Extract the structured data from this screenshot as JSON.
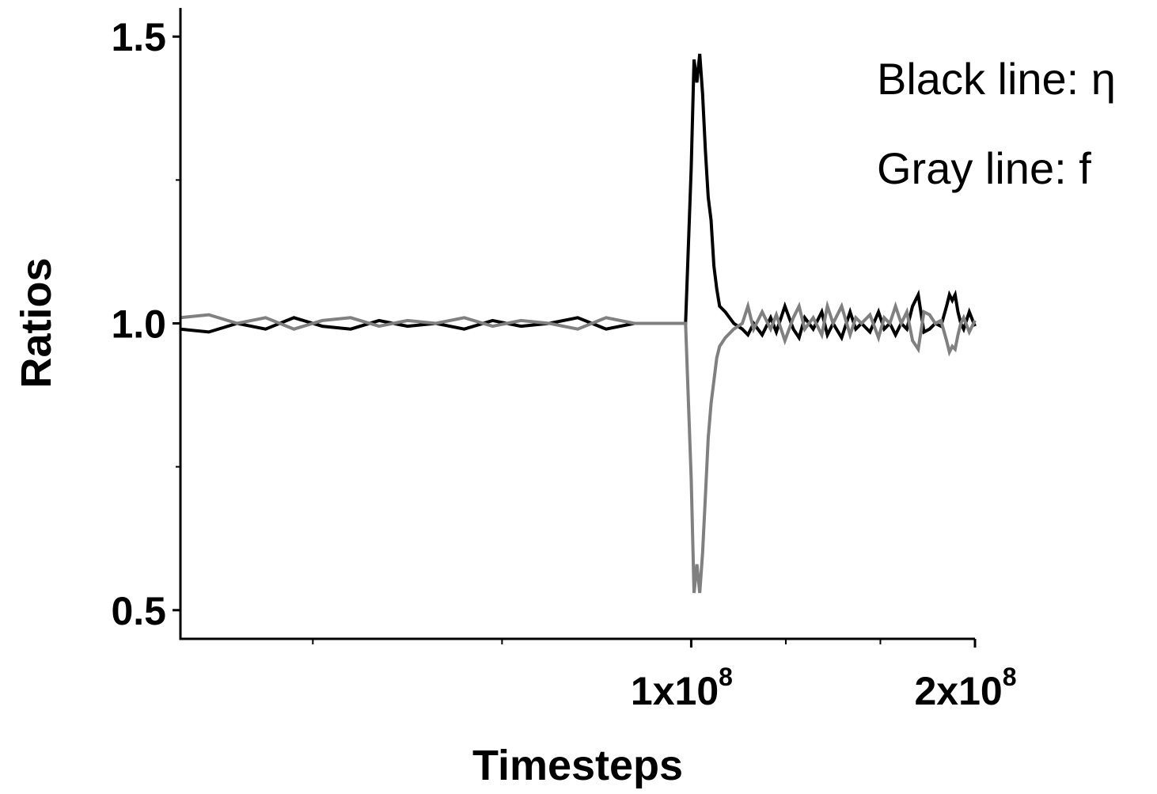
{
  "chart_data": {
    "type": "line",
    "title": "",
    "xlabel": "Timesteps",
    "ylabel": "Ratios",
    "xlim": [
      -80000000,
      200000000
    ],
    "ylim": [
      0.45,
      1.55
    ],
    "grid": false,
    "x_ticks": [
      {
        "value": 100000000,
        "mantissa": "1x10",
        "exponent": "8"
      },
      {
        "value": 200000000,
        "mantissa": "2x10",
        "exponent": "8"
      }
    ],
    "x_minor_ticks": [
      -33333333,
      33333333,
      133333333,
      166666667
    ],
    "y_ticks": [
      {
        "value": 0.5,
        "label": "0.5"
      },
      {
        "value": 1.0,
        "label": "1.0"
      },
      {
        "value": 1.5,
        "label": "1.5"
      }
    ],
    "y_minor_ticks": [
      0.75,
      1.25
    ],
    "annotations": [
      {
        "text": "Black line: η",
        "position": "top-right"
      },
      {
        "text": "Gray line: f",
        "position": "top-right"
      }
    ],
    "series": [
      {
        "color": "#000000",
        "x": [
          -80000000,
          -70000000,
          -60000000,
          -50000000,
          -40000000,
          -30000000,
          -20000000,
          -10000000,
          0,
          10000000,
          20000000,
          30000000,
          40000000,
          50000000,
          60000000,
          70000000,
          80000000,
          90000000,
          98000000,
          100000000,
          101000000,
          102000000,
          103000000,
          104000000,
          105000000,
          106000000,
          107000000,
          108000000,
          109000000,
          110000000,
          112000000,
          115000000,
          118000000,
          120000000,
          122000000,
          125000000,
          128000000,
          130000000,
          133000000,
          136000000,
          138000000,
          140000000,
          143000000,
          146000000,
          148000000,
          150000000,
          153000000,
          156000000,
          158000000,
          160000000,
          163000000,
          166000000,
          168000000,
          170000000,
          172000000,
          174000000,
          176000000,
          178000000,
          180000000,
          182000000,
          184000000,
          186000000,
          188000000,
          190000000,
          191000000,
          192000000,
          193000000,
          194000000,
          195000000,
          196000000,
          198000000,
          200000000
        ],
        "values": [
          0.99,
          0.985,
          1.0,
          0.99,
          1.01,
          0.995,
          0.99,
          1.005,
          0.995,
          1.0,
          0.99,
          1.005,
          0.995,
          1.0,
          1.01,
          0.99,
          1.0,
          1.0,
          1.0,
          1.27,
          1.46,
          1.42,
          1.47,
          1.4,
          1.3,
          1.22,
          1.18,
          1.1,
          1.06,
          1.03,
          1.02,
          1.0,
          0.99,
          0.98,
          1.0,
          0.98,
          1.01,
          0.985,
          1.03,
          0.99,
          0.975,
          1.01,
          0.99,
          1.02,
          0.98,
          1.0,
          0.975,
          1.02,
          0.99,
          1.0,
          0.985,
          1.02,
          0.99,
          1.0,
          0.98,
          1.0,
          0.99,
          1.03,
          1.05,
          0.985,
          0.99,
          1.0,
          0.995,
          1.03,
          1.05,
          1.04,
          1.05,
          1.02,
          1.0,
          0.99,
          1.02,
          0.995
        ]
      },
      {
        "color": "#808080",
        "x": [
          -80000000,
          -70000000,
          -60000000,
          -50000000,
          -40000000,
          -30000000,
          -20000000,
          -10000000,
          0,
          10000000,
          20000000,
          30000000,
          40000000,
          50000000,
          60000000,
          70000000,
          80000000,
          90000000,
          98000000,
          100000000,
          101000000,
          102000000,
          103000000,
          104000000,
          105000000,
          106000000,
          107000000,
          108000000,
          109000000,
          110000000,
          112000000,
          115000000,
          118000000,
          120000000,
          122000000,
          125000000,
          128000000,
          130000000,
          133000000,
          136000000,
          138000000,
          140000000,
          143000000,
          146000000,
          148000000,
          150000000,
          153000000,
          156000000,
          158000000,
          160000000,
          163000000,
          166000000,
          168000000,
          170000000,
          172000000,
          174000000,
          176000000,
          178000000,
          180000000,
          182000000,
          184000000,
          186000000,
          188000000,
          190000000,
          191000000,
          192000000,
          193000000,
          194000000,
          195000000,
          196000000,
          198000000,
          200000000
        ],
        "values": [
          1.01,
          1.015,
          1.0,
          1.01,
          0.99,
          1.005,
          1.01,
          0.995,
          1.005,
          1.0,
          1.01,
          0.995,
          1.005,
          1.0,
          0.99,
          1.01,
          1.0,
          1.0,
          1.0,
          0.73,
          0.53,
          0.58,
          0.53,
          0.6,
          0.7,
          0.8,
          0.86,
          0.9,
          0.94,
          0.96,
          0.975,
          0.99,
          1.0,
          1.03,
          0.99,
          1.02,
          0.99,
          1.015,
          0.97,
          1.01,
          1.03,
          0.99,
          1.01,
          0.98,
          1.03,
          1.0,
          1.03,
          0.98,
          1.01,
          1.0,
          1.015,
          0.975,
          1.01,
          1.0,
          1.03,
          1.0,
          1.02,
          0.97,
          0.955,
          1.02,
          1.015,
          1.0,
          1.005,
          0.97,
          0.95,
          0.96,
          0.955,
          0.98,
          1.0,
          1.01,
          0.985,
          1.005
        ]
      }
    ]
  }
}
